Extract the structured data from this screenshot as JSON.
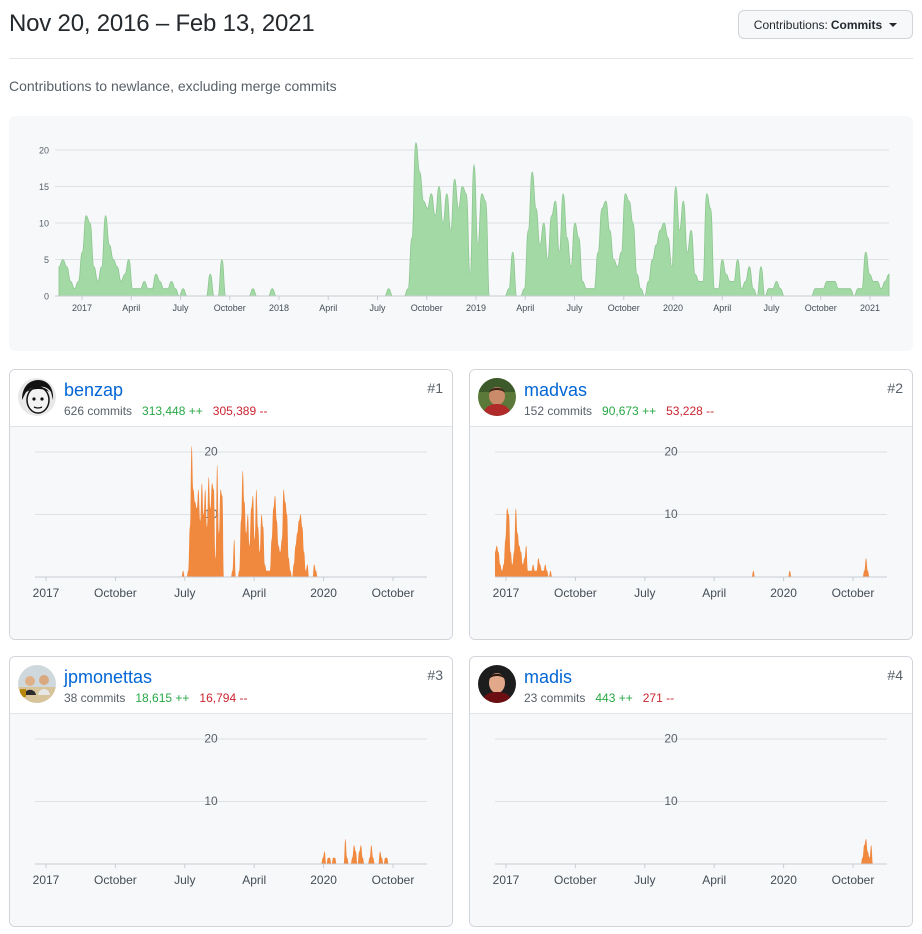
{
  "header": {
    "title": "Nov 20, 2016 – Feb 13, 2021",
    "dropdown_prefix": "Contributions:",
    "dropdown_value": "Commits"
  },
  "subtitle": "Contributions to newlance, excluding merge commits",
  "colors": {
    "main_area": "#a3d9a5",
    "main_stroke": "#8cc68f",
    "contributor_area": "#f0883e",
    "link": "#0366d6",
    "additions": "#28a745",
    "deletions": "#cb2431"
  },
  "chart_data": [
    {
      "type": "area",
      "title": "Contributions to newlance, excluding merge commits",
      "ylim": [
        0,
        20
      ],
      "yticks": [
        0,
        5,
        10,
        15,
        20
      ],
      "xticks": [
        "2017",
        "April",
        "July",
        "October",
        "2018",
        "April",
        "July",
        "October",
        "2019",
        "April",
        "July",
        "October",
        "2020",
        "April",
        "July",
        "October",
        "2021"
      ],
      "values": [
        4,
        5,
        4,
        2,
        1,
        2,
        6,
        11,
        10,
        4,
        2,
        4,
        11,
        7,
        5,
        4,
        2,
        3,
        5,
        1,
        1,
        1,
        2,
        1,
        1,
        3,
        2,
        1,
        1,
        2,
        1,
        0,
        1,
        0,
        0,
        0,
        0,
        0,
        0,
        3,
        0,
        0,
        5,
        0,
        0,
        0,
        0,
        0,
        0,
        0,
        1,
        0,
        0,
        0,
        0,
        1,
        0,
        0,
        0,
        0,
        0,
        0,
        0,
        0,
        0,
        0,
        0,
        0,
        0,
        0,
        0,
        0,
        0,
        0,
        0,
        0,
        0,
        0,
        0,
        0,
        0,
        0,
        0,
        0,
        0,
        1,
        0,
        0,
        0,
        0,
        1,
        8,
        21,
        17,
        13,
        12,
        14,
        11,
        15,
        10,
        14,
        9,
        16,
        12,
        15,
        14,
        3,
        18,
        7,
        14,
        13,
        0,
        0,
        0,
        0,
        0,
        1,
        6,
        0,
        0,
        1,
        9,
        17,
        12,
        7,
        10,
        5,
        11,
        13,
        6,
        14,
        8,
        4,
        10,
        8,
        2,
        1,
        1,
        1,
        6,
        12,
        13,
        9,
        5,
        4,
        6,
        14,
        13,
        10,
        3,
        1,
        0,
        2,
        5,
        7,
        9,
        10,
        8,
        4,
        15,
        9,
        13,
        6,
        9,
        3,
        2,
        2,
        14,
        12,
        1,
        1,
        5,
        3,
        2,
        2,
        5,
        1,
        2,
        4,
        1,
        0,
        4,
        0,
        1,
        1,
        2,
        1,
        0,
        0,
        0,
        0,
        0,
        0,
        0,
        0,
        1,
        1,
        1,
        2,
        2,
        2,
        1,
        1,
        1,
        1,
        0,
        1,
        1,
        6,
        3,
        2,
        2,
        1,
        2,
        3
      ]
    },
    {
      "type": "area",
      "name": "benzap",
      "ylim": [
        0,
        20
      ],
      "yticks": [
        10,
        20
      ],
      "xticks": [
        "2017",
        "October",
        "July",
        "April",
        "2020",
        "October"
      ],
      "values": [
        0,
        0,
        0,
        0,
        0,
        0,
        0,
        0,
        0,
        0,
        0,
        0,
        0,
        0,
        0,
        0,
        0,
        0,
        0,
        0,
        0,
        0,
        0,
        0,
        0,
        0,
        0,
        0,
        0,
        0,
        0,
        0,
        0,
        0,
        0,
        0,
        0,
        0,
        0,
        0,
        0,
        0,
        0,
        0,
        0,
        0,
        0,
        0,
        0,
        0,
        0,
        0,
        0,
        0,
        0,
        0,
        0,
        0,
        0,
        0,
        0,
        0,
        0,
        0,
        0,
        0,
        0,
        0,
        0,
        0,
        0,
        0,
        0,
        0,
        0,
        0,
        0,
        0,
        0,
        0,
        0,
        0,
        0,
        0,
        0,
        0,
        0,
        1,
        0,
        0,
        1,
        8,
        21,
        14,
        12,
        11,
        14,
        9,
        15,
        10,
        14,
        8,
        16,
        11,
        15,
        14,
        3,
        18,
        7,
        14,
        13,
        0,
        0,
        0,
        0,
        0,
        1,
        6,
        0,
        0,
        1,
        9,
        17,
        12,
        7,
        10,
        5,
        11,
        13,
        6,
        14,
        8,
        4,
        10,
        8,
        2,
        1,
        1,
        1,
        6,
        11,
        13,
        9,
        5,
        4,
        6,
        14,
        12,
        10,
        3,
        1,
        0,
        2,
        5,
        7,
        9,
        10,
        8,
        4,
        1,
        2,
        0,
        0,
        0,
        2,
        1,
        0,
        0,
        0,
        0,
        0,
        0,
        0,
        0,
        0,
        0,
        0,
        0,
        0,
        0,
        0,
        0,
        0,
        0,
        0,
        0,
        0,
        0,
        0,
        0,
        0,
        0,
        0,
        0,
        0,
        0,
        0,
        0,
        0,
        0,
        0,
        0,
        0,
        0,
        0,
        0,
        0,
        0,
        0,
        0,
        0,
        0,
        0,
        0,
        0,
        0,
        0,
        0,
        0,
        0,
        0,
        0,
        0
      ]
    },
    {
      "type": "area",
      "name": "madvas",
      "ylim": [
        0,
        20
      ],
      "yticks": [
        10,
        20
      ],
      "xticks": [
        "2017",
        "October",
        "July",
        "April",
        "2020",
        "October"
      ],
      "values": [
        4,
        5,
        4,
        2,
        1,
        2,
        6,
        11,
        10,
        4,
        2,
        4,
        11,
        7,
        5,
        4,
        2,
        3,
        5,
        1,
        1,
        1,
        2,
        1,
        1,
        3,
        2,
        1,
        1,
        2,
        1,
        0,
        1,
        0,
        0,
        0,
        0,
        0,
        0,
        0,
        0,
        0,
        0,
        0,
        0,
        0,
        0,
        0,
        0,
        0,
        0,
        0,
        0,
        0,
        0,
        0,
        0,
        0,
        0,
        0,
        0,
        0,
        0,
        0,
        0,
        0,
        0,
        0,
        0,
        0,
        0,
        0,
        0,
        0,
        0,
        0,
        0,
        0,
        0,
        0,
        0,
        0,
        0,
        0,
        0,
        0,
        0,
        0,
        0,
        0,
        0,
        0,
        0,
        0,
        0,
        0,
        0,
        0,
        0,
        0,
        0,
        0,
        0,
        0,
        0,
        0,
        0,
        0,
        0,
        0,
        0,
        0,
        0,
        0,
        0,
        0,
        0,
        0,
        0,
        0,
        0,
        0,
        0,
        0,
        0,
        0,
        0,
        0,
        0,
        0,
        0,
        0,
        0,
        0,
        0,
        0,
        0,
        0,
        0,
        0,
        0,
        0,
        0,
        0,
        0,
        0,
        0,
        0,
        0,
        1,
        0,
        0,
        0,
        0,
        0,
        0,
        0,
        0,
        0,
        0,
        0,
        0,
        0,
        0,
        0,
        0,
        0,
        0,
        0,
        0,
        1,
        0,
        0,
        0,
        0,
        0,
        0,
        0,
        0,
        0,
        0,
        0,
        0,
        0,
        0,
        0,
        0,
        0,
        0,
        0,
        0,
        0,
        0,
        0,
        0,
        0,
        0,
        0,
        0,
        0,
        0,
        0,
        0,
        0,
        0,
        0,
        0,
        0,
        0,
        0,
        0,
        0,
        0,
        1,
        3,
        1,
        0,
        0,
        0
      ]
    },
    {
      "type": "area",
      "name": "jpmonettas",
      "ylim": [
        0,
        20
      ],
      "yticks": [
        10,
        20
      ],
      "xticks": [
        "2017",
        "October",
        "July",
        "April",
        "2020",
        "October"
      ],
      "values": [
        0,
        0,
        0,
        0,
        0,
        0,
        0,
        0,
        0,
        0,
        0,
        0,
        0,
        0,
        0,
        0,
        0,
        0,
        0,
        0,
        0,
        0,
        0,
        0,
        0,
        0,
        0,
        0,
        0,
        0,
        0,
        0,
        0,
        0,
        0,
        0,
        0,
        0,
        0,
        0,
        0,
        0,
        0,
        0,
        0,
        0,
        0,
        0,
        0,
        0,
        0,
        0,
        0,
        0,
        0,
        0,
        0,
        0,
        0,
        0,
        0,
        0,
        0,
        0,
        0,
        0,
        0,
        0,
        0,
        0,
        0,
        0,
        0,
        0,
        0,
        0,
        0,
        0,
        0,
        0,
        0,
        0,
        0,
        0,
        0,
        0,
        0,
        0,
        0,
        0,
        0,
        0,
        0,
        0,
        0,
        0,
        0,
        0,
        0,
        0,
        0,
        0,
        0,
        0,
        0,
        0,
        0,
        0,
        0,
        0,
        0,
        0,
        0,
        0,
        0,
        0,
        0,
        0,
        0,
        0,
        0,
        0,
        0,
        0,
        0,
        0,
        0,
        0,
        0,
        0,
        0,
        0,
        0,
        0,
        0,
        0,
        0,
        0,
        0,
        0,
        0,
        0,
        0,
        0,
        0,
        0,
        0,
        0,
        0,
        0,
        0,
        0,
        0,
        0,
        0,
        0,
        0,
        0,
        0,
        0,
        0,
        0,
        0,
        0,
        0,
        0,
        1,
        2,
        0,
        1,
        1,
        0,
        1,
        1,
        0,
        0,
        0,
        0,
        0,
        4,
        1,
        0,
        0,
        1,
        3,
        2,
        0,
        2,
        3,
        1,
        0,
        0,
        0,
        1,
        3,
        1,
        0,
        0,
        0,
        2,
        1,
        0,
        1,
        1,
        0,
        0,
        0,
        0,
        0,
        0,
        0,
        0,
        0,
        0,
        0,
        0,
        0,
        0,
        0
      ]
    },
    {
      "type": "area",
      "name": "madis",
      "ylim": [
        0,
        20
      ],
      "yticks": [
        10,
        20
      ],
      "xticks": [
        "2017",
        "October",
        "July",
        "April",
        "2020",
        "October"
      ],
      "values": [
        0,
        0,
        0,
        0,
        0,
        0,
        0,
        0,
        0,
        0,
        0,
        0,
        0,
        0,
        0,
        0,
        0,
        0,
        0,
        0,
        0,
        0,
        0,
        0,
        0,
        0,
        0,
        0,
        0,
        0,
        0,
        0,
        0,
        0,
        0,
        0,
        0,
        0,
        0,
        0,
        0,
        0,
        0,
        0,
        0,
        0,
        0,
        0,
        0,
        0,
        0,
        0,
        0,
        0,
        0,
        0,
        0,
        0,
        0,
        0,
        0,
        0,
        0,
        0,
        0,
        0,
        0,
        0,
        0,
        0,
        0,
        0,
        0,
        0,
        0,
        0,
        0,
        0,
        0,
        0,
        0,
        0,
        0,
        0,
        0,
        0,
        0,
        0,
        0,
        0,
        0,
        0,
        0,
        0,
        0,
        0,
        0,
        0,
        0,
        0,
        0,
        0,
        0,
        0,
        0,
        0,
        0,
        0,
        0,
        0,
        0,
        0,
        0,
        0,
        0,
        0,
        0,
        0,
        0,
        0,
        0,
        0,
        0,
        0,
        0,
        0,
        0,
        0,
        0,
        0,
        0,
        0,
        0,
        0,
        0,
        0,
        0,
        0,
        0,
        0,
        0,
        0,
        0,
        0,
        0,
        0,
        0,
        0,
        0,
        0,
        0,
        0,
        0,
        0,
        0,
        0,
        0,
        0,
        0,
        0,
        0,
        0,
        0,
        0,
        0,
        0,
        0,
        0,
        0,
        0,
        0,
        0,
        0,
        0,
        0,
        0,
        0,
        0,
        0,
        0,
        0,
        0,
        0,
        0,
        0,
        0,
        0,
        0,
        0,
        0,
        0,
        0,
        0,
        0,
        0,
        0,
        0,
        0,
        0,
        0,
        0,
        0,
        0,
        0,
        0,
        0,
        0,
        0,
        0,
        0,
        1,
        3,
        4,
        2,
        1,
        3,
        0
      ]
    }
  ],
  "contributors": [
    {
      "username": "benzap",
      "commits": "626 commits",
      "additions": "313,448 ++",
      "deletions": "305,389 --",
      "rank": "#1",
      "avatar_icon": "avatar-benzap"
    },
    {
      "username": "madvas",
      "commits": "152 commits",
      "additions": "90,673 ++",
      "deletions": "53,228 --",
      "rank": "#2",
      "avatar_icon": "avatar-madvas"
    },
    {
      "username": "jpmonettas",
      "commits": "38 commits",
      "additions": "18,615 ++",
      "deletions": "16,794 --",
      "rank": "#3",
      "avatar_icon": "avatar-jpmonettas"
    },
    {
      "username": "madis",
      "commits": "23 commits",
      "additions": "443 ++",
      "deletions": "271 --",
      "rank": "#4",
      "avatar_icon": "avatar-madis"
    }
  ]
}
